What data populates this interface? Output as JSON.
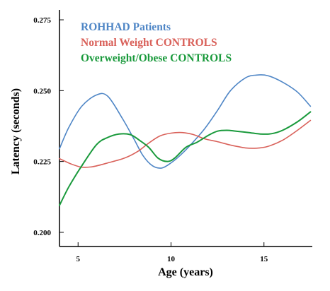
{
  "chart_data": {
    "type": "line",
    "title": "",
    "xlabel": "Age (years)",
    "ylabel": "Latency (seconds)",
    "xlim": [
      4,
      17.6
    ],
    "ylim": [
      0.195,
      0.2785
    ],
    "xticks": [
      5,
      10,
      15
    ],
    "xtick_labels": [
      "5",
      "10",
      "15"
    ],
    "yticks": [
      0.2,
      0.225,
      0.25,
      0.275
    ],
    "ytick_labels": [
      "0.200",
      "0.225",
      "0.250",
      "0.275"
    ],
    "grid": false,
    "legend_position": "top-left",
    "series": [
      {
        "name": "ROHHAD Patients",
        "color": "#4F86C6",
        "x": [
          4.0,
          4.5,
          5.2,
          6.0,
          6.6,
          7.4,
          8.0,
          8.5,
          9.0,
          9.5,
          10.0,
          10.5,
          11.0,
          11.8,
          12.5,
          13.2,
          14.0,
          14.6,
          15.2,
          16.0,
          16.8,
          17.5
        ],
        "y": [
          0.2295,
          0.237,
          0.2445,
          0.2485,
          0.248,
          0.24,
          0.233,
          0.227,
          0.2235,
          0.2227,
          0.2245,
          0.2272,
          0.2305,
          0.2365,
          0.243,
          0.25,
          0.2545,
          0.2555,
          0.2553,
          0.253,
          0.2495,
          0.2445
        ]
      },
      {
        "name": "Normal Weight CONTROLS",
        "color": "#D9615A",
        "x": [
          4.0,
          4.6,
          5.2,
          5.8,
          6.6,
          7.5,
          8.2,
          8.8,
          9.4,
          10.0,
          10.6,
          11.2,
          11.8,
          12.5,
          13.2,
          14.0,
          14.6,
          15.2,
          16.0,
          16.8,
          17.5
        ],
        "y": [
          0.226,
          0.2242,
          0.223,
          0.2232,
          0.2245,
          0.2262,
          0.2285,
          0.2315,
          0.234,
          0.235,
          0.2352,
          0.2345,
          0.233,
          0.232,
          0.2308,
          0.2298,
          0.2297,
          0.2303,
          0.2325,
          0.236,
          0.2395
        ]
      },
      {
        "name": "Overweight/Obese CONTROLS",
        "color": "#1A9A3C",
        "x": [
          4.0,
          4.5,
          5.2,
          6.0,
          6.6,
          7.2,
          7.8,
          8.3,
          8.8,
          9.3,
          9.8,
          10.2,
          10.8,
          11.4,
          12.0,
          12.5,
          13.0,
          13.5,
          14.2,
          14.8,
          15.4,
          16.0,
          16.8,
          17.5
        ],
        "y": [
          0.2095,
          0.216,
          0.2235,
          0.231,
          0.2335,
          0.2347,
          0.2345,
          0.2325,
          0.23,
          0.2262,
          0.225,
          0.2262,
          0.23,
          0.2318,
          0.2342,
          0.2357,
          0.236,
          0.2357,
          0.2352,
          0.2347,
          0.2348,
          0.236,
          0.239,
          0.2425
        ]
      }
    ]
  }
}
